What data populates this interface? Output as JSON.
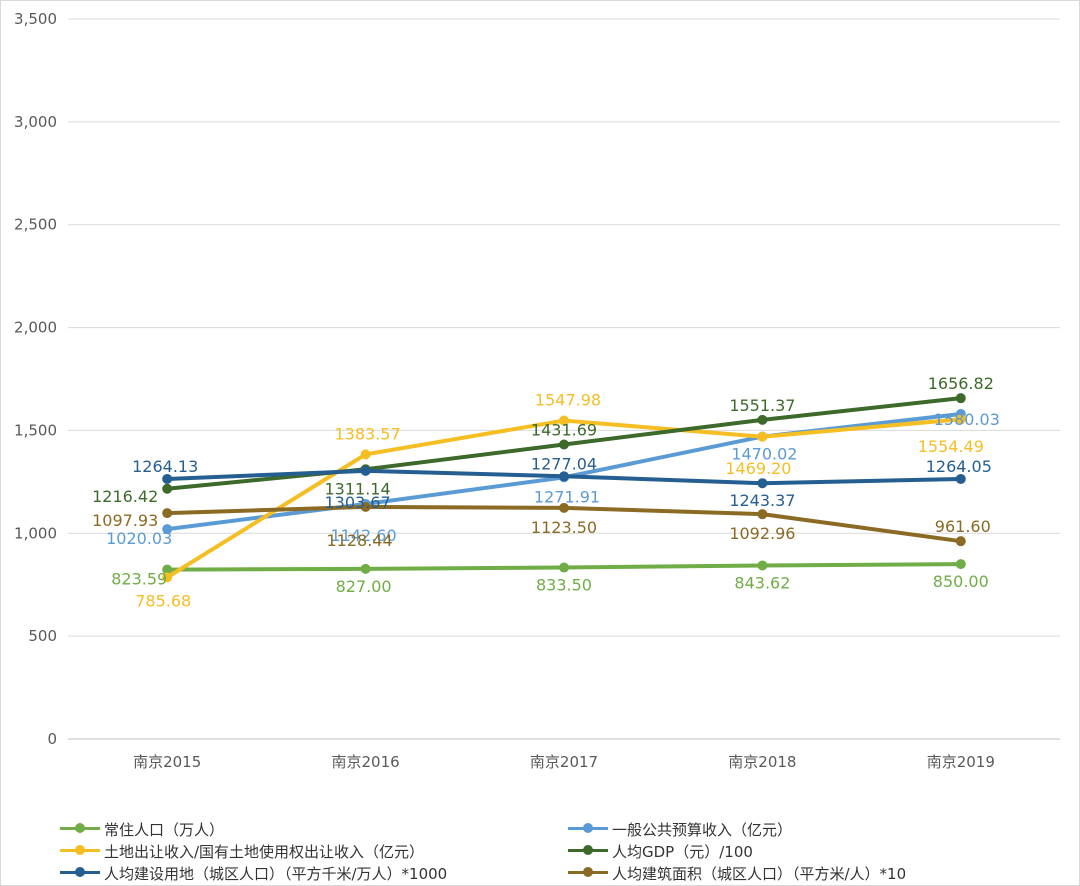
{
  "chart_data": {
    "type": "line",
    "categories": [
      "南京2015",
      "南京2016",
      "南京2017",
      "南京2018",
      "南京2019"
    ],
    "ylim": [
      0,
      3500
    ],
    "yticks": [
      0,
      500,
      1000,
      1500,
      2000,
      2500,
      3000,
      3500
    ],
    "ytick_labels": [
      "0",
      "500",
      "1,000",
      "1,500",
      "2,000",
      "2,500",
      "3,000",
      "3,500"
    ],
    "grid": true,
    "legend_position": "bottom",
    "series": [
      {
        "name": "常住人口（万人）",
        "color": "#70ad47",
        "values": [
          823.59,
          827.0,
          833.5,
          843.62,
          850.0
        ],
        "labels": [
          "823.59",
          "827.00",
          "833.50",
          "843.62",
          "850.00"
        ]
      },
      {
        "name": "一般公共预算收入（亿元）",
        "color": "#5b9bd5",
        "values": [
          1020.03,
          1142.6,
          1271.91,
          1470.02,
          1580.03
        ],
        "labels": [
          "1020.03",
          "1142.60",
          "1271.91",
          "1470.02",
          "1580.03"
        ]
      },
      {
        "name": "土地出让收入/国有土地使用权出让收入（亿元）",
        "color": "#f5be23",
        "values": [
          785.68,
          1383.57,
          1547.98,
          1469.2,
          1554.49
        ],
        "labels": [
          "785.68",
          "1383.57",
          "1547.98",
          "1469.20",
          "1554.49"
        ]
      },
      {
        "name": "人均GDP（元）/100",
        "color": "#3d6a2a",
        "values": [
          1216.42,
          1311.14,
          1431.69,
          1551.37,
          1656.82
        ],
        "labels": [
          "1216.42",
          "1311.14",
          "1431.69",
          "1551.37",
          "1656.82"
        ]
      },
      {
        "name": "人均建设用地（城区人口）（平方千米/万人）*1000",
        "color": "#255e91",
        "values": [
          1264.13,
          1303.67,
          1277.04,
          1243.37,
          1264.05
        ],
        "labels": [
          "1264.13",
          "1303.67",
          "1277.04",
          "1243.37",
          "1264.05"
        ]
      },
      {
        "name": "人均建筑面积（城区人口）（平方米/人）*10",
        "color": "#8b6a24",
        "values": [
          1097.93,
          1128.44,
          1123.5,
          1092.96,
          961.6
        ],
        "labels": [
          "1097.93",
          "1128.44",
          "1123.50",
          "1092.96",
          "961.60"
        ]
      }
    ]
  }
}
